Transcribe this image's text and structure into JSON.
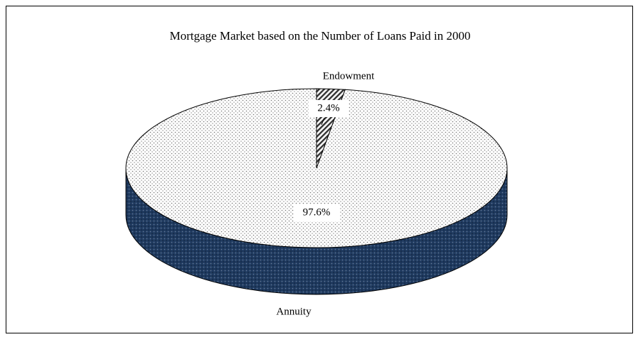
{
  "chart_data": {
    "type": "pie3d",
    "title": "Mortgage Market based on the Number of Loans Paid in  2000",
    "categories": [
      "Endowment",
      "Annuity"
    ],
    "values": [
      2.4,
      97.6
    ],
    "value_labels": [
      "2.4%",
      "97.6%"
    ]
  }
}
